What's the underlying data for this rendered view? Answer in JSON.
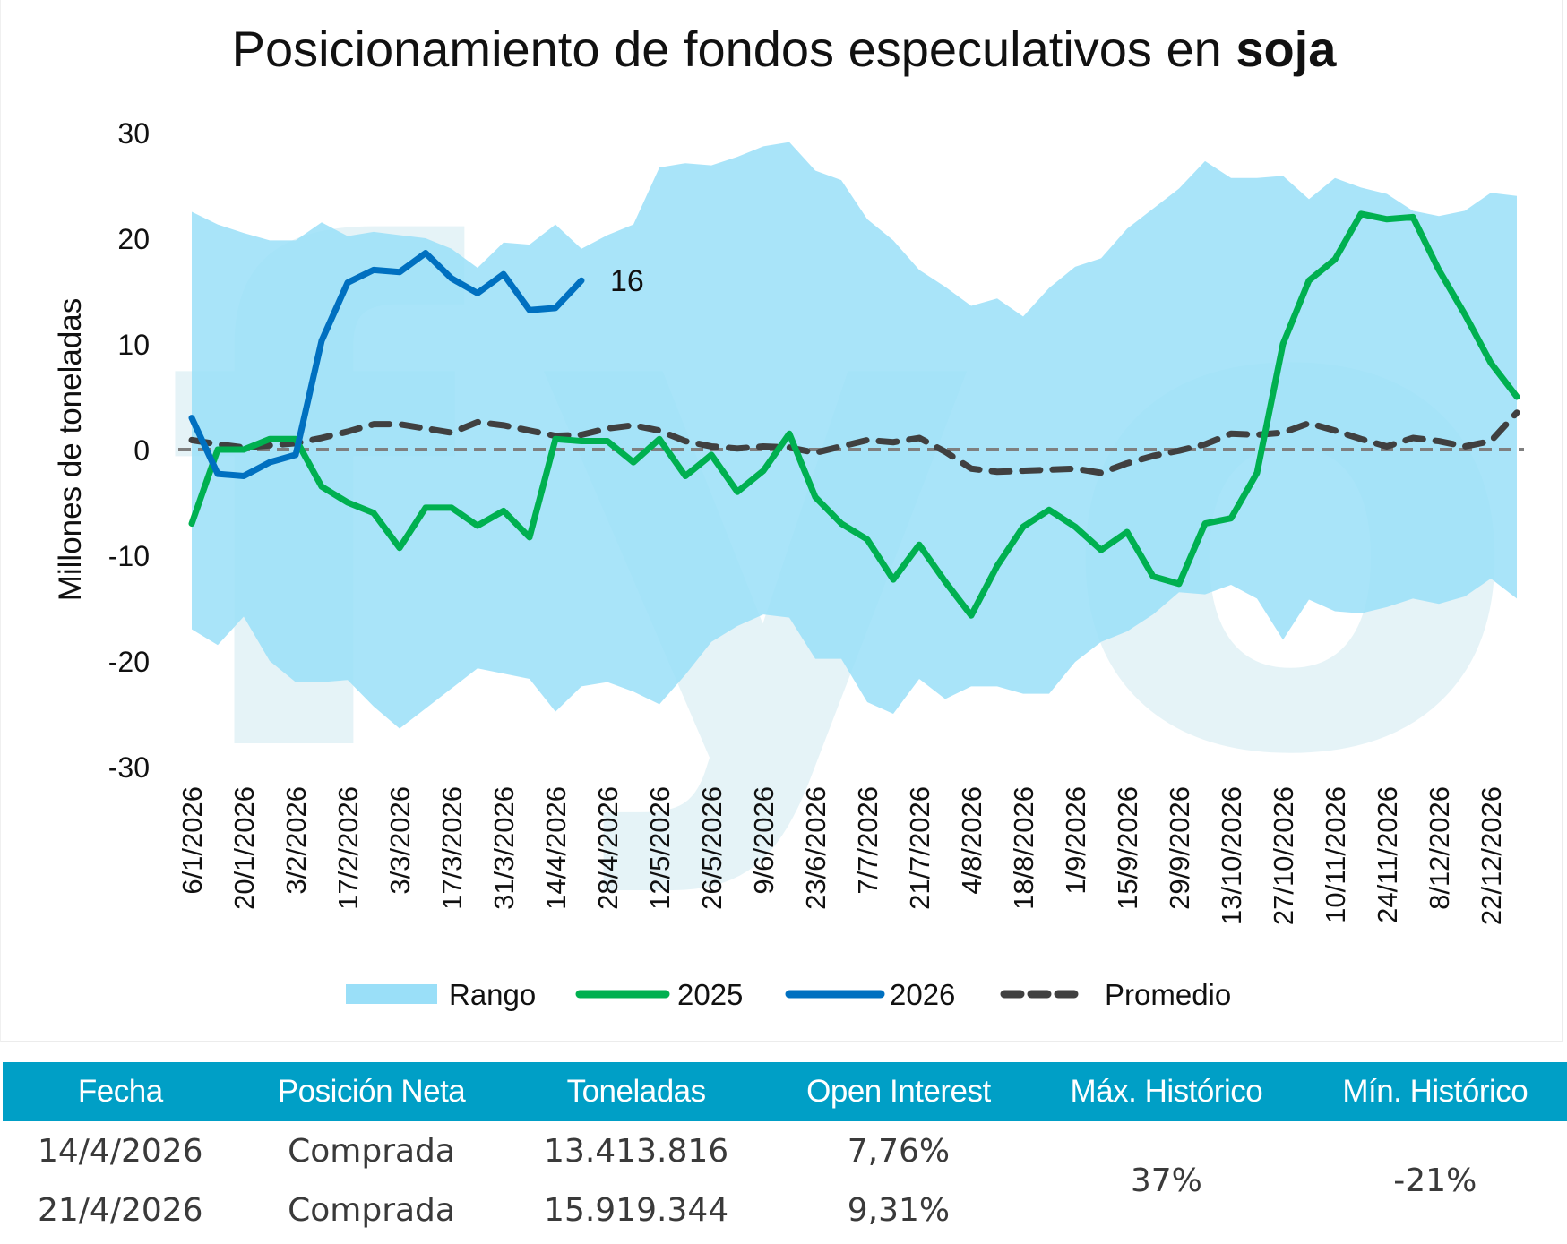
{
  "chart_data": {
    "type": "area+line",
    "title_prefix": "Posicionamiento de fondos especulativos en ",
    "title_bold": "soja",
    "ylabel": "Millones de toneladas",
    "ylim": [
      -30,
      30
    ],
    "yticks": [
      30,
      20,
      10,
      0,
      -10,
      -20,
      -30
    ],
    "ytick_labels": [
      "30",
      "20",
      "10",
      "0",
      "-10",
      "-20",
      "-30"
    ],
    "x_tick_labels": [
      "6/1/2026",
      "20/1/2026",
      "3/2/2026",
      "17/2/2026",
      "3/3/2026",
      "17/3/2026",
      "31/3/2026",
      "14/4/2026",
      "28/4/2026",
      "12/5/2026",
      "26/5/2026",
      "9/6/2026",
      "23/6/2026",
      "7/7/2026",
      "21/7/2026",
      "4/8/2026",
      "18/8/2026",
      "1/9/2026",
      "15/9/2026",
      "29/9/2026",
      "13/10/2026",
      "27/10/2026",
      "10/11/2026",
      "24/11/2026",
      "8/12/2026",
      "22/12/2026"
    ],
    "n_weeks": 52,
    "grid": false,
    "zero_line": true,
    "legend_position": "bottom",
    "series": [
      {
        "name": "Rango",
        "type": "band",
        "color": "#9adff8",
        "upper": [
          22.5,
          21.3,
          20.5,
          19.8,
          19.8,
          21.5,
          20.2,
          20.6,
          20.3,
          20,
          19,
          17.2,
          19.6,
          19.4,
          21.3,
          19,
          20.3,
          21.3,
          26.7,
          27.1,
          26.9,
          27.7,
          28.7,
          29.1,
          26.4,
          25.5,
          21.8,
          19.8,
          17,
          15.4,
          13.6,
          14.3,
          12.6,
          15.3,
          17.3,
          18.1,
          20.9,
          22.8,
          24.7,
          27.3,
          25.7,
          25.7,
          25.9,
          23.7,
          25.7,
          24.8,
          24.2,
          22.6,
          22.1,
          22.6,
          24.3,
          24
        ],
        "lower": [
          -17,
          -18.5,
          -15.8,
          -20,
          -22,
          -22,
          -21.8,
          -24.3,
          -26.4,
          -24.5,
          -22.6,
          -20.7,
          -21.2,
          -21.7,
          -24.8,
          -22.4,
          -22,
          -22.9,
          -24.1,
          -21.3,
          -18.2,
          -16.7,
          -15.6,
          -15.9,
          -19.8,
          -19.8,
          -23.9,
          -25,
          -21.7,
          -23.6,
          -22.4,
          -22.4,
          -23.1,
          -23.1,
          -20.1,
          -18.2,
          -17.2,
          -15.6,
          -13.5,
          -13.7,
          -12.8,
          -14.1,
          -18,
          -14.2,
          -15.3,
          -15.5,
          -14.9,
          -14.1,
          -14.6,
          -13.9,
          -12.2,
          -14.1
        ]
      },
      {
        "name": "2025",
        "type": "line",
        "color": "#00b050",
        "values": [
          -7,
          0,
          0,
          1,
          1,
          -3.5,
          -5,
          -6,
          -9.3,
          -5.5,
          -5.5,
          -7.2,
          -5.8,
          -8.3,
          1,
          0.8,
          0.8,
          -1.2,
          1,
          -2.5,
          -0.5,
          -4,
          -2,
          1.5,
          -4.5,
          -7,
          -8.5,
          -12.3,
          -9,
          -12.5,
          -15.7,
          -11,
          -7.3,
          -5.7,
          -7.3,
          -9.5,
          -7.8,
          -12,
          -12.7,
          -7,
          -6.5,
          -2.2,
          10,
          16,
          18,
          22.3,
          21.8,
          22,
          17,
          12.8,
          8.2,
          5
        ]
      },
      {
        "name": "2026",
        "type": "line",
        "color": "#0070c0",
        "values": [
          3,
          -2.3,
          -2.5,
          -1.2,
          -0.5,
          10.3,
          15.8,
          17,
          16.8,
          18.6,
          16.2,
          14.8,
          16.6,
          13.2,
          13.4,
          16
        ],
        "last_label": "16"
      },
      {
        "name": "Promedio",
        "type": "dashed-line",
        "color": "#404040",
        "values": [
          0.9,
          0.5,
          0.2,
          0.4,
          0.6,
          1.1,
          1.7,
          2.4,
          2.4,
          2.0,
          1.6,
          2.6,
          2.3,
          1.8,
          1.3,
          1.4,
          2.0,
          2.3,
          1.8,
          0.8,
          0.3,
          0.1,
          0.3,
          0.2,
          -0.3,
          0.3,
          0.9,
          0.7,
          1.1,
          -0.2,
          -1.8,
          -2.1,
          -2.0,
          -1.9,
          -1.8,
          -2.2,
          -1.3,
          -0.6,
          -0.1,
          0.5,
          1.5,
          1.4,
          1.6,
          2.5,
          1.8,
          1.0,
          0.3,
          1.1,
          0.8,
          0.3,
          0.8,
          3.5
        ]
      }
    ],
    "watermark": "fyo"
  },
  "table": {
    "headers": [
      "Fecha",
      "Posición Neta",
      "Toneladas",
      "Open Interest",
      "Máx. Histórico",
      "Mín. Histórico"
    ],
    "rows": [
      {
        "fecha": "14/4/2026",
        "posicion": "Comprada",
        "toneladas": "13.413.816",
        "open_interest": "7,76%"
      },
      {
        "fecha": "21/4/2026",
        "posicion": "Comprada",
        "toneladas": "15.919.344",
        "open_interest": "9,31%"
      }
    ],
    "max_historico": "37%",
    "min_historico": "-21%"
  }
}
